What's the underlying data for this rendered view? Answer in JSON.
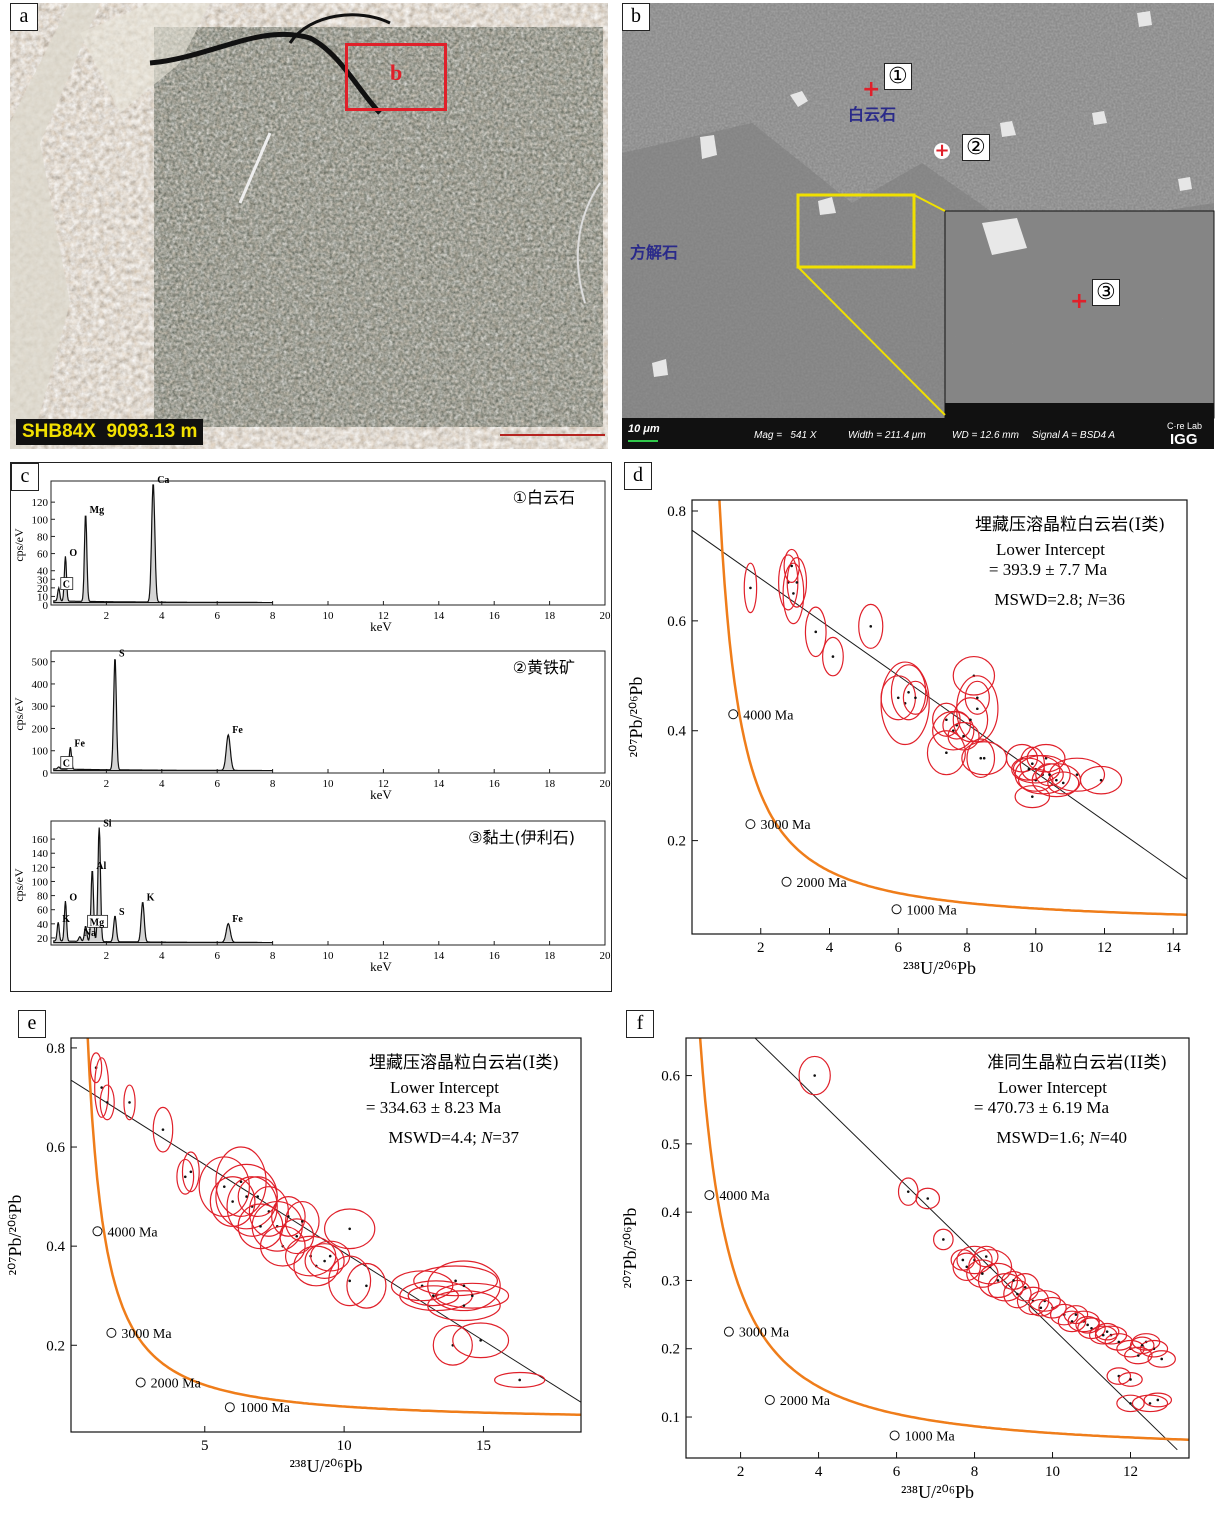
{
  "panels": {
    "a": {
      "label": "a",
      "sample_label": "SHB84X  9093.13 m",
      "box_label": "b",
      "colors": {
        "box": "#e0202a",
        "sample_text": "#f2e000"
      }
    },
    "b": {
      "label": "b",
      "dolomite_label": "白云石",
      "calcite_label": "方解石",
      "point1": "①",
      "point2": "②",
      "point3": "③",
      "info_bar": {
        "scale": "10 μm",
        "mag": "Mag =   541 X",
        "width": "Width = 211.4 μm",
        "wd": "WD = 12.6 mm",
        "signal": "Signal A = BSD4 A",
        "logo_top": "C·re Lab",
        "logo_bottom": "IGG"
      },
      "colors": {
        "mineral_label": "#2a2a8a",
        "marker": "#e0202a",
        "zoom_box": "#f0e000"
      }
    },
    "c": {
      "label": "c",
      "spectra": [
        {
          "title": "①白云石",
          "ylabel": "cps/eV",
          "xlabel": "keV",
          "yticks": [
            0,
            10,
            20,
            30,
            40,
            60,
            80,
            100,
            120
          ],
          "xticks": [
            2,
            4,
            6,
            8,
            10,
            12,
            14,
            16,
            18,
            20
          ],
          "peaks": [
            {
              "element": "C",
              "x": 0.28,
              "y": 18,
              "boxed": true
            },
            {
              "element": "O",
              "x": 0.52,
              "y": 55
            },
            {
              "element": "Mg",
              "x": 1.25,
              "y": 105
            },
            {
              "element": "Ca",
              "x": 3.69,
              "y": 142
            }
          ]
        },
        {
          "title": "②黄铁矿",
          "ylabel": "cps/eV",
          "xlabel": "keV",
          "yticks": [
            0,
            100,
            200,
            300,
            400,
            500
          ],
          "xticks": [
            2,
            4,
            6,
            8,
            10,
            12,
            14,
            16,
            18,
            20
          ],
          "peaks": [
            {
              "element": "C",
              "x": 0.28,
              "y": 20,
              "boxed": true
            },
            {
              "element": "Fe",
              "x": 0.7,
              "y": 110
            },
            {
              "element": "S",
              "x": 2.31,
              "y": 515
            },
            {
              "element": "Fe",
              "x": 6.4,
              "y": 170
            }
          ]
        },
        {
          "title": "③黏土(伊利石)",
          "ylabel": "cps/eV",
          "xlabel": "keV",
          "yticks": [
            20,
            40,
            60,
            80,
            100,
            120,
            140,
            160
          ],
          "xticks": [
            2,
            4,
            6,
            8,
            10,
            12,
            14,
            16,
            18,
            20
          ],
          "peaks": [
            {
              "element": "K",
              "x": 0.26,
              "y": 40
            },
            {
              "element": "O",
              "x": 0.52,
              "y": 70
            },
            {
              "element": "Na",
              "x": 1.04,
              "y": 20
            },
            {
              "element": "Mg",
              "x": 1.25,
              "y": 35,
              "boxed": true
            },
            {
              "element": "Al",
              "x": 1.49,
              "y": 115
            },
            {
              "element": "Si",
              "x": 1.74,
              "y": 175
            },
            {
              "element": "S",
              "x": 2.31,
              "y": 50
            },
            {
              "element": "K",
              "x": 3.31,
              "y": 70
            },
            {
              "element": "Fe",
              "x": 6.4,
              "y": 40
            }
          ]
        }
      ],
      "colors": {
        "fill": "#d4d4d4",
        "line": "#111111"
      }
    }
  },
  "chart_data": [
    {
      "id": "d",
      "label": "d",
      "type": "scatter",
      "title": "埋藏压溶晶粒白云岩(I类)",
      "intercept_label": "Lower Intercept",
      "intercept_value": "= 393.9 ± 7.7 Ma",
      "stats_prefix": "MSWD=2.8; ",
      "n_label": "N",
      "n_value": "=36",
      "xlabel": "²³⁸U/²⁰⁶Pb",
      "ylabel": "²⁰⁷Pb/²⁰⁶Pb",
      "xlim": [
        0,
        14.4
      ],
      "ylim": [
        0.03,
        0.82
      ],
      "xticks": [
        2,
        4,
        6,
        8,
        10,
        12,
        14
      ],
      "yticks": [
        0.2,
        0.4,
        0.6,
        0.8
      ],
      "regression": {
        "x1": 0,
        "y1": 0.765,
        "x2": 14.4,
        "y2": 0.13,
        "band_half_width": 0.008
      },
      "concordia_ages": [
        {
          "age": "4000 Ma",
          "x": 1.2,
          "y": 0.43
        },
        {
          "age": "3000 Ma",
          "x": 1.7,
          "y": 0.23
        },
        {
          "age": "2000 Ma",
          "x": 2.75,
          "y": 0.125
        },
        {
          "age": "1000 Ma",
          "x": 5.95,
          "y": 0.075
        }
      ],
      "points": [
        {
          "x": 1.7,
          "y": 0.66,
          "rx": 0.18,
          "ry": 0.045
        },
        {
          "x": 2.8,
          "y": 0.67,
          "rx": 0.28,
          "ry": 0.05
        },
        {
          "x": 2.95,
          "y": 0.65,
          "rx": 0.3,
          "ry": 0.055
        },
        {
          "x": 3.05,
          "y": 0.67,
          "rx": 0.28,
          "ry": 0.045
        },
        {
          "x": 2.9,
          "y": 0.7,
          "rx": 0.22,
          "ry": 0.03
        },
        {
          "x": 3.6,
          "y": 0.58,
          "rx": 0.3,
          "ry": 0.045
        },
        {
          "x": 4.1,
          "y": 0.535,
          "rx": 0.3,
          "ry": 0.035
        },
        {
          "x": 5.2,
          "y": 0.59,
          "rx": 0.35,
          "ry": 0.04
        },
        {
          "x": 6.0,
          "y": 0.46,
          "rx": 0.5,
          "ry": 0.04
        },
        {
          "x": 6.2,
          "y": 0.45,
          "rx": 0.7,
          "ry": 0.075
        },
        {
          "x": 6.3,
          "y": 0.47,
          "rx": 0.5,
          "ry": 0.05
        },
        {
          "x": 6.5,
          "y": 0.46,
          "rx": 0.35,
          "ry": 0.03
        },
        {
          "x": 7.4,
          "y": 0.42,
          "rx": 0.4,
          "ry": 0.03
        },
        {
          "x": 7.6,
          "y": 0.4,
          "rx": 0.6,
          "ry": 0.035
        },
        {
          "x": 7.4,
          "y": 0.36,
          "rx": 0.55,
          "ry": 0.04
        },
        {
          "x": 7.7,
          "y": 0.41,
          "rx": 0.4,
          "ry": 0.025
        },
        {
          "x": 8.1,
          "y": 0.42,
          "rx": 0.5,
          "ry": 0.04
        },
        {
          "x": 8.2,
          "y": 0.5,
          "rx": 0.6,
          "ry": 0.035
        },
        {
          "x": 8.3,
          "y": 0.44,
          "rx": 0.6,
          "ry": 0.06
        },
        {
          "x": 8.4,
          "y": 0.35,
          "rx": 0.4,
          "ry": 0.035
        },
        {
          "x": 8.5,
          "y": 0.35,
          "rx": 0.65,
          "ry": 0.03
        },
        {
          "x": 8.3,
          "y": 0.46,
          "rx": 0.35,
          "ry": 0.03
        },
        {
          "x": 9.6,
          "y": 0.35,
          "rx": 0.45,
          "ry": 0.025
        },
        {
          "x": 9.9,
          "y": 0.34,
          "rx": 0.35,
          "ry": 0.03
        },
        {
          "x": 10.3,
          "y": 0.35,
          "rx": 0.55,
          "ry": 0.025
        },
        {
          "x": 9.9,
          "y": 0.28,
          "rx": 0.5,
          "ry": 0.02
        },
        {
          "x": 10.0,
          "y": 0.33,
          "rx": 0.7,
          "ry": 0.025
        },
        {
          "x": 10.2,
          "y": 0.32,
          "rx": 0.8,
          "ry": 0.035
        },
        {
          "x": 10.6,
          "y": 0.31,
          "rx": 0.7,
          "ry": 0.03
        },
        {
          "x": 11.2,
          "y": 0.32,
          "rx": 0.8,
          "ry": 0.03
        },
        {
          "x": 11.9,
          "y": 0.31,
          "rx": 0.6,
          "ry": 0.025
        },
        {
          "x": 10.0,
          "y": 0.31,
          "rx": 0.5,
          "ry": 0.02
        },
        {
          "x": 10.4,
          "y": 0.32,
          "rx": 0.4,
          "ry": 0.02
        },
        {
          "x": 9.8,
          "y": 0.33,
          "rx": 0.45,
          "ry": 0.02
        },
        {
          "x": 7.9,
          "y": 0.39,
          "rx": 0.45,
          "ry": 0.025
        },
        {
          "x": 10.8,
          "y": 0.305,
          "rx": 0.45,
          "ry": 0.02
        }
      ]
    },
    {
      "id": "e",
      "label": "e",
      "type": "scatter",
      "title": "埋藏压溶晶粒白云岩(I类)",
      "intercept_label": "Lower Intercept",
      "intercept_value": "= 334.63 ± 8.23 Ma",
      "stats_prefix": "MSWD=4.4; ",
      "n_label": "N",
      "n_value": "=37",
      "xlabel": "²³⁸U/²⁰⁶Pb",
      "ylabel": "²⁰⁷Pb/²⁰⁶Pb",
      "xlim": [
        0.2,
        18.5
      ],
      "ylim": [
        0.025,
        0.82
      ],
      "xticks": [
        5,
        10,
        15
      ],
      "yticks": [
        0.2,
        0.4,
        0.6,
        0.8
      ],
      "regression": {
        "x1": 0.2,
        "y1": 0.735,
        "x2": 18.5,
        "y2": 0.085,
        "band_half_width": 0.009
      },
      "concordia_ages": [
        {
          "age": "4000 Ma",
          "x": 1.15,
          "y": 0.43
        },
        {
          "age": "3000 Ma",
          "x": 1.65,
          "y": 0.225
        },
        {
          "age": "2000 Ma",
          "x": 2.7,
          "y": 0.125
        },
        {
          "age": "1000 Ma",
          "x": 5.9,
          "y": 0.075
        }
      ],
      "points": [
        {
          "x": 1.1,
          "y": 0.76,
          "rx": 0.2,
          "ry": 0.03
        },
        {
          "x": 1.3,
          "y": 0.72,
          "rx": 0.25,
          "ry": 0.06
        },
        {
          "x": 1.5,
          "y": 0.69,
          "rx": 0.25,
          "ry": 0.035
        },
        {
          "x": 2.3,
          "y": 0.69,
          "rx": 0.2,
          "ry": 0.035
        },
        {
          "x": 3.5,
          "y": 0.635,
          "rx": 0.35,
          "ry": 0.045
        },
        {
          "x": 4.3,
          "y": 0.54,
          "rx": 0.3,
          "ry": 0.035
        },
        {
          "x": 4.5,
          "y": 0.55,
          "rx": 0.3,
          "ry": 0.04
        },
        {
          "x": 5.7,
          "y": 0.52,
          "rx": 0.9,
          "ry": 0.06
        },
        {
          "x": 6.3,
          "y": 0.53,
          "rx": 0.9,
          "ry": 0.07
        },
        {
          "x": 6.5,
          "y": 0.5,
          "rx": 1.1,
          "ry": 0.065
        },
        {
          "x": 6.7,
          "y": 0.48,
          "rx": 0.9,
          "ry": 0.06
        },
        {
          "x": 7.0,
          "y": 0.44,
          "rx": 0.8,
          "ry": 0.045
        },
        {
          "x": 7.3,
          "y": 0.47,
          "rx": 0.7,
          "ry": 0.05
        },
        {
          "x": 7.6,
          "y": 0.44,
          "rx": 0.9,
          "ry": 0.05
        },
        {
          "x": 8.0,
          "y": 0.46,
          "rx": 0.6,
          "ry": 0.04
        },
        {
          "x": 7.8,
          "y": 0.4,
          "rx": 0.8,
          "ry": 0.04
        },
        {
          "x": 8.3,
          "y": 0.42,
          "rx": 0.6,
          "ry": 0.035
        },
        {
          "x": 8.8,
          "y": 0.38,
          "rx": 0.9,
          "ry": 0.04
        },
        {
          "x": 9.0,
          "y": 0.36,
          "rx": 0.8,
          "ry": 0.04
        },
        {
          "x": 9.5,
          "y": 0.38,
          "rx": 0.7,
          "ry": 0.03
        },
        {
          "x": 10.2,
          "y": 0.435,
          "rx": 0.9,
          "ry": 0.04
        },
        {
          "x": 10.2,
          "y": 0.33,
          "rx": 0.75,
          "ry": 0.05
        },
        {
          "x": 10.8,
          "y": 0.32,
          "rx": 0.7,
          "ry": 0.045
        },
        {
          "x": 12.8,
          "y": 0.32,
          "rx": 1.1,
          "ry": 0.03
        },
        {
          "x": 13.3,
          "y": 0.3,
          "rx": 1.3,
          "ry": 0.03
        },
        {
          "x": 14.3,
          "y": 0.32,
          "rx": 1.3,
          "ry": 0.05
        },
        {
          "x": 14.0,
          "y": 0.33,
          "rx": 1.5,
          "ry": 0.03
        },
        {
          "x": 14.3,
          "y": 0.28,
          "rx": 1.3,
          "ry": 0.03
        },
        {
          "x": 14.6,
          "y": 0.3,
          "rx": 1.3,
          "ry": 0.025
        },
        {
          "x": 13.9,
          "y": 0.2,
          "rx": 0.7,
          "ry": 0.04
        },
        {
          "x": 14.9,
          "y": 0.21,
          "rx": 1.0,
          "ry": 0.035
        },
        {
          "x": 16.3,
          "y": 0.13,
          "rx": 0.9,
          "ry": 0.015
        },
        {
          "x": 13.2,
          "y": 0.3,
          "rx": 0.9,
          "ry": 0.02
        },
        {
          "x": 8.5,
          "y": 0.45,
          "rx": 0.6,
          "ry": 0.04
        },
        {
          "x": 6.9,
          "y": 0.5,
          "rx": 0.7,
          "ry": 0.04
        },
        {
          "x": 6.0,
          "y": 0.49,
          "rx": 0.8,
          "ry": 0.05
        },
        {
          "x": 9.3,
          "y": 0.37,
          "rx": 0.7,
          "ry": 0.035
        }
      ]
    },
    {
      "id": "f",
      "label": "f",
      "type": "scatter",
      "title": "准同生晶粒白云岩(II类)",
      "intercept_label": "Lower Intercept",
      "intercept_value": "= 470.73 ± 6.19 Ma",
      "stats_prefix": "MSWD=1.6; ",
      "n_label": "N",
      "n_value": "=40",
      "xlabel": "²³⁸U/²⁰⁶Pb",
      "ylabel": "²⁰⁷Pb/²⁰⁶Pb",
      "xlim": [
        0.6,
        13.5
      ],
      "ylim": [
        0.04,
        0.655
      ],
      "xticks": [
        2,
        4,
        6,
        8,
        10,
        12
      ],
      "yticks": [
        0.1,
        0.2,
        0.3,
        0.4,
        0.5,
        0.6
      ],
      "regression": {
        "x1": 2.1,
        "y1": 0.67,
        "x2": 13.2,
        "y2": 0.052,
        "band_half_width": 0.006
      },
      "concordia_ages": [
        {
          "age": "4000 Ma",
          "x": 1.2,
          "y": 0.425
        },
        {
          "age": "3000 Ma",
          "x": 1.7,
          "y": 0.225
        },
        {
          "age": "2000 Ma",
          "x": 2.75,
          "y": 0.125
        },
        {
          "age": "1000 Ma",
          "x": 5.95,
          "y": 0.073
        }
      ],
      "points": [
        {
          "x": 3.9,
          "y": 0.6,
          "rx": 0.4,
          "ry": 0.028
        },
        {
          "x": 6.3,
          "y": 0.43,
          "rx": 0.25,
          "ry": 0.02
        },
        {
          "x": 6.8,
          "y": 0.42,
          "rx": 0.3,
          "ry": 0.015
        },
        {
          "x": 7.2,
          "y": 0.36,
          "rx": 0.25,
          "ry": 0.015
        },
        {
          "x": 7.7,
          "y": 0.33,
          "rx": 0.3,
          "ry": 0.015
        },
        {
          "x": 7.8,
          "y": 0.32,
          "rx": 0.35,
          "ry": 0.02
        },
        {
          "x": 8.0,
          "y": 0.33,
          "rx": 0.45,
          "ry": 0.02
        },
        {
          "x": 8.2,
          "y": 0.31,
          "rx": 0.4,
          "ry": 0.02
        },
        {
          "x": 8.4,
          "y": 0.32,
          "rx": 0.55,
          "ry": 0.025
        },
        {
          "x": 8.6,
          "y": 0.3,
          "rx": 0.5,
          "ry": 0.025
        },
        {
          "x": 8.8,
          "y": 0.29,
          "rx": 0.45,
          "ry": 0.02
        },
        {
          "x": 9.1,
          "y": 0.28,
          "rx": 0.35,
          "ry": 0.02
        },
        {
          "x": 9.3,
          "y": 0.29,
          "rx": 0.35,
          "ry": 0.02
        },
        {
          "x": 9.5,
          "y": 0.27,
          "rx": 0.4,
          "ry": 0.02
        },
        {
          "x": 9.8,
          "y": 0.27,
          "rx": 0.4,
          "ry": 0.015
        },
        {
          "x": 10.0,
          "y": 0.26,
          "rx": 0.35,
          "ry": 0.015
        },
        {
          "x": 10.3,
          "y": 0.25,
          "rx": 0.35,
          "ry": 0.015
        },
        {
          "x": 10.5,
          "y": 0.24,
          "rx": 0.35,
          "ry": 0.015
        },
        {
          "x": 10.8,
          "y": 0.24,
          "rx": 0.4,
          "ry": 0.015
        },
        {
          "x": 11.0,
          "y": 0.23,
          "rx": 0.35,
          "ry": 0.015
        },
        {
          "x": 11.3,
          "y": 0.22,
          "rx": 0.35,
          "ry": 0.013
        },
        {
          "x": 11.5,
          "y": 0.22,
          "rx": 0.4,
          "ry": 0.013
        },
        {
          "x": 11.7,
          "y": 0.21,
          "rx": 0.35,
          "ry": 0.012
        },
        {
          "x": 12.0,
          "y": 0.2,
          "rx": 0.35,
          "ry": 0.012
        },
        {
          "x": 12.2,
          "y": 0.19,
          "rx": 0.35,
          "ry": 0.012
        },
        {
          "x": 12.4,
          "y": 0.21,
          "rx": 0.35,
          "ry": 0.012
        },
        {
          "x": 12.6,
          "y": 0.2,
          "rx": 0.35,
          "ry": 0.012
        },
        {
          "x": 12.8,
          "y": 0.185,
          "rx": 0.35,
          "ry": 0.012
        },
        {
          "x": 11.7,
          "y": 0.16,
          "rx": 0.3,
          "ry": 0.012
        },
        {
          "x": 12.0,
          "y": 0.155,
          "rx": 0.3,
          "ry": 0.01
        },
        {
          "x": 12.0,
          "y": 0.12,
          "rx": 0.35,
          "ry": 0.012
        },
        {
          "x": 12.5,
          "y": 0.12,
          "rx": 0.45,
          "ry": 0.012
        },
        {
          "x": 12.7,
          "y": 0.125,
          "rx": 0.35,
          "ry": 0.01
        },
        {
          "x": 9.7,
          "y": 0.26,
          "rx": 0.3,
          "ry": 0.012
        },
        {
          "x": 10.9,
          "y": 0.235,
          "rx": 0.3,
          "ry": 0.012
        },
        {
          "x": 8.3,
          "y": 0.335,
          "rx": 0.3,
          "ry": 0.015
        },
        {
          "x": 10.6,
          "y": 0.25,
          "rx": 0.3,
          "ry": 0.013
        },
        {
          "x": 11.4,
          "y": 0.225,
          "rx": 0.3,
          "ry": 0.012
        },
        {
          "x": 9.0,
          "y": 0.3,
          "rx": 0.3,
          "ry": 0.013
        },
        {
          "x": 12.3,
          "y": 0.205,
          "rx": 0.3,
          "ry": 0.012
        }
      ]
    }
  ],
  "colors": {
    "ellipse": "#e0202a",
    "concordia": "#ef7d1a",
    "band": "#cfcfcf",
    "line": "#1a1a1a"
  }
}
